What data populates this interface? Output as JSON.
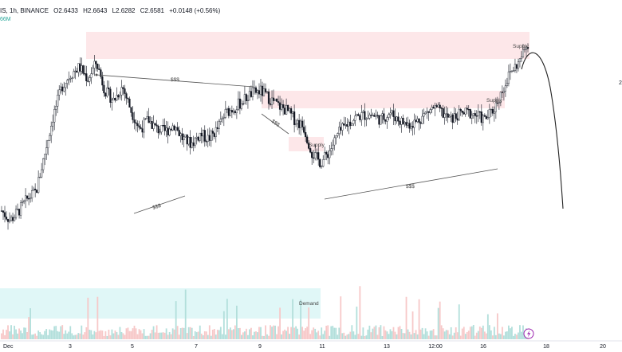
{
  "header": {
    "symbol_fragment": "IS, 1h, BINANCE",
    "open": "O2.6433",
    "high": "H2.6643",
    "low": "L2.6282",
    "close": "C2.6581",
    "change": "+0.0148 (+0.56%)",
    "volume_fragment": "66M"
  },
  "colors": {
    "candle": "#131722",
    "supply_zone": "#fde7e9",
    "demand_zone": "#e0f7f7",
    "vol_up": "#b2dfdb",
    "vol_down": "#f7c8c8",
    "axis_text": "#131722",
    "lightning_icon": "#9c27b0"
  },
  "chart_data": {
    "type": "candlestick",
    "x_tick_labels": [
      "Dec",
      "3",
      "5",
      "7",
      "9",
      "11",
      "13",
      "12:00",
      "16",
      "18",
      "20"
    ],
    "right_axis_fragment": "2",
    "close_path": [
      2.0,
      1.96,
      2.0,
      2.05,
      2.08,
      2.24,
      2.4,
      2.52,
      2.57,
      2.6,
      2.55,
      2.62,
      2.5,
      2.46,
      2.52,
      2.42,
      2.34,
      2.38,
      2.34,
      2.33,
      2.36,
      2.3,
      2.28,
      2.32,
      2.3,
      2.34,
      2.41,
      2.43,
      2.46,
      2.49,
      2.5,
      2.47,
      2.44,
      2.42,
      2.38,
      2.35,
      2.24,
      2.2,
      2.25,
      2.32,
      2.36,
      2.39,
      2.4,
      2.4,
      2.38,
      2.41,
      2.38,
      2.36,
      2.37,
      2.4,
      2.43,
      2.41,
      2.38,
      2.4,
      2.41,
      2.4,
      2.38,
      2.42,
      2.5,
      2.58,
      2.62,
      2.7
    ],
    "annotations": {
      "supply_labels": [
        "Supply",
        "Supply",
        "Supply"
      ],
      "demand_label": "Demand",
      "liquidity_labels": [
        "$$$",
        "$$$",
        "$$$",
        "$$$"
      ]
    }
  }
}
